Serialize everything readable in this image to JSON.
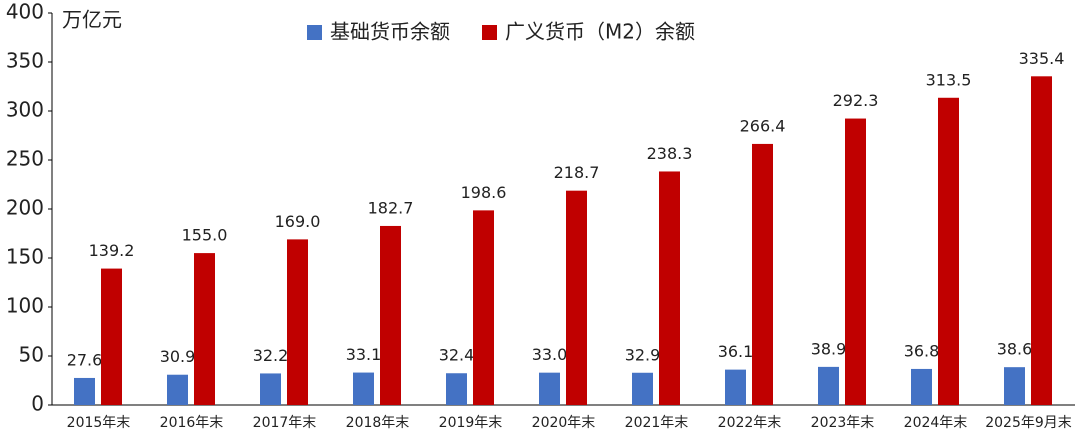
{
  "chart_data": {
    "type": "bar",
    "unit_label": "万亿元",
    "categories": [
      "2015年末",
      "2016年末",
      "2017年末",
      "2018年末",
      "2019年末",
      "2020年末",
      "2021年末",
      "2022年末",
      "2023年末",
      "2024年末",
      "2025年9月末"
    ],
    "series": [
      {
        "name": "基础货币余额",
        "color": "#4472c4",
        "values": [
          27.6,
          30.9,
          32.2,
          33.1,
          32.4,
          33.0,
          32.9,
          36.1,
          38.9,
          36.8,
          38.6
        ],
        "value_labels": [
          "27.6",
          "30.9",
          "32.2",
          "33.1",
          "32.4",
          "33.0",
          "32.9",
          "36.1",
          "38.9",
          "36.8",
          "38.6"
        ]
      },
      {
        "name": "广义货币（M2）余额",
        "color": "#c00000",
        "values": [
          139.2,
          155.0,
          169.0,
          182.7,
          198.6,
          218.7,
          238.3,
          266.4,
          292.3,
          313.5,
          335.4
        ],
        "value_labels": [
          "139.2",
          "155.0",
          "169.0",
          "182.7",
          "198.6",
          "218.7",
          "238.3",
          "266.4",
          "292.3",
          "313.5",
          "335.4"
        ]
      }
    ],
    "ylim": [
      0,
      400
    ],
    "yticks": [
      0,
      50,
      100,
      150,
      200,
      250,
      300,
      350,
      400
    ],
    "grid": false
  }
}
